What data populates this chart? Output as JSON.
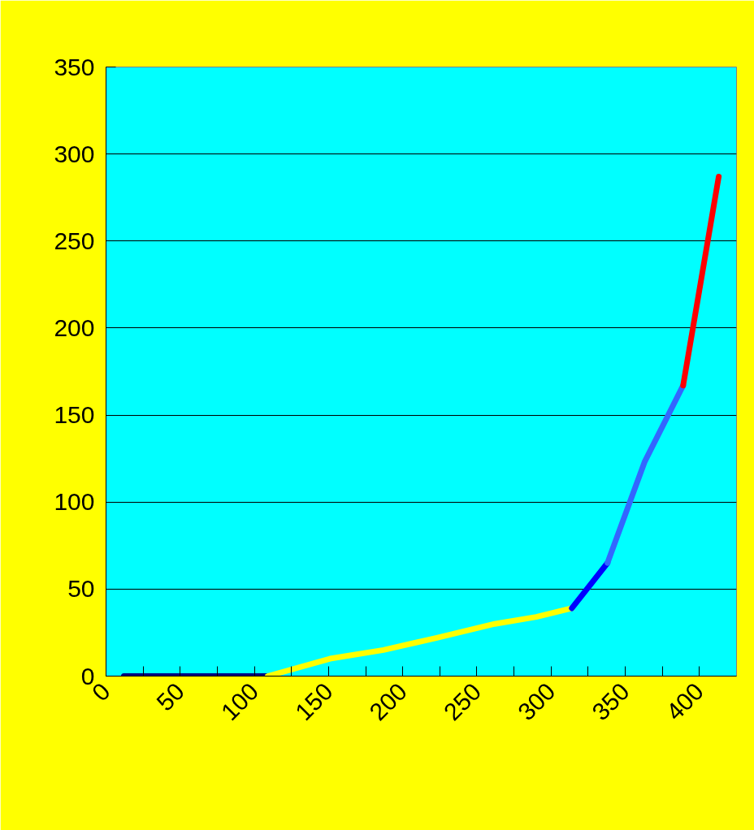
{
  "chart_data": {
    "type": "line",
    "xlim": [
      0,
      425
    ],
    "ylim": [
      0,
      350
    ],
    "xticks": [
      0,
      {
        "value": 25,
        "label": null
      },
      50,
      {
        "value": 75,
        "label": null
      },
      100,
      {
        "value": 125,
        "label": null
      },
      150,
      {
        "value": 175,
        "label": null
      },
      200,
      {
        "value": 225,
        "label": null
      },
      250,
      {
        "value": 275,
        "label": null
      },
      300,
      {
        "value": 325,
        "label": null
      },
      350,
      {
        "value": 375,
        "label": null
      },
      400
    ],
    "yticks": [
      0,
      50,
      100,
      150,
      200,
      250,
      300,
      350
    ],
    "grid": "y",
    "marker": "none",
    "line_style": "solid",
    "series": [
      {
        "color": "#000080",
        "x": [
          12,
          109
        ],
        "values": [
          0,
          0
        ]
      },
      {
        "color": "#ffff00",
        "x": [
          109,
          151,
          187,
          223,
          262,
          290,
          314
        ],
        "values": [
          0,
          10,
          15,
          22,
          30,
          34,
          39
        ]
      },
      {
        "color": "#0000ff",
        "x": [
          314,
          338
        ],
        "values": [
          39,
          65
        ]
      },
      {
        "color": "#3366ff",
        "x": [
          338,
          363,
          389
        ],
        "values": [
          65,
          123,
          167
        ]
      },
      {
        "color": "#ff0000",
        "x": [
          389,
          413
        ],
        "values": [
          167,
          287
        ]
      }
    ]
  }
}
